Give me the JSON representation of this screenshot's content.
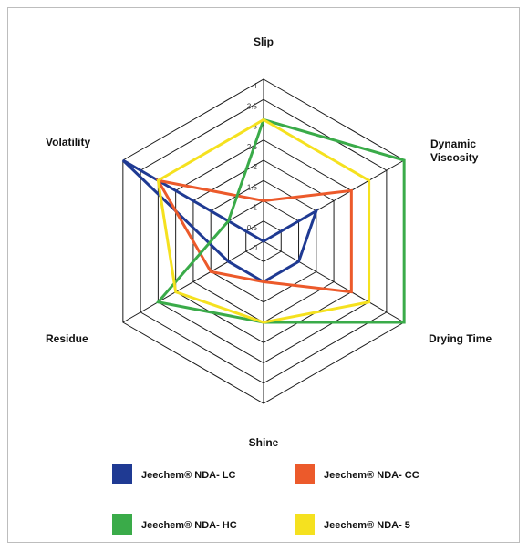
{
  "chart_data": {
    "type": "radar",
    "axes": [
      "Slip",
      "Dynamic Viscosity",
      "Drying Time",
      "Shine",
      "Residue",
      "Volatility"
    ],
    "axis_display": [
      [
        "Slip"
      ],
      [
        "Dynamic",
        "Viscosity"
      ],
      [
        "Drying Time"
      ],
      [
        "Shine"
      ],
      [
        "Residue"
      ],
      [
        "Volatility"
      ]
    ],
    "range": [
      0,
      4
    ],
    "ticks": [
      0,
      0.5,
      1,
      1.5,
      2,
      2.5,
      3,
      3.5,
      4
    ],
    "tick_labels": [
      "0",
      "0.5",
      "1",
      "1.5",
      "2",
      "2.5",
      "3",
      "3.5",
      "4"
    ],
    "grid": true,
    "legend_position": "bottom",
    "series": [
      {
        "name": "Jeechem® NDA- LC",
        "color": "#1f3a93",
        "values": [
          0,
          1.5,
          1,
          1,
          1,
          4
        ]
      },
      {
        "name": "Jeechem® NDA- CC",
        "color": "#ec5a2b",
        "values": [
          1,
          2.5,
          2.5,
          1,
          1.5,
          3
        ]
      },
      {
        "name": "Jeechem® NDA- HC",
        "color": "#3aab49",
        "values": [
          3,
          4,
          4,
          2,
          3,
          1
        ]
      },
      {
        "name": "Jeechem® NDA- 5",
        "color": "#f5e11f",
        "values": [
          3,
          3,
          3,
          2,
          2.5,
          3
        ]
      }
    ]
  }
}
